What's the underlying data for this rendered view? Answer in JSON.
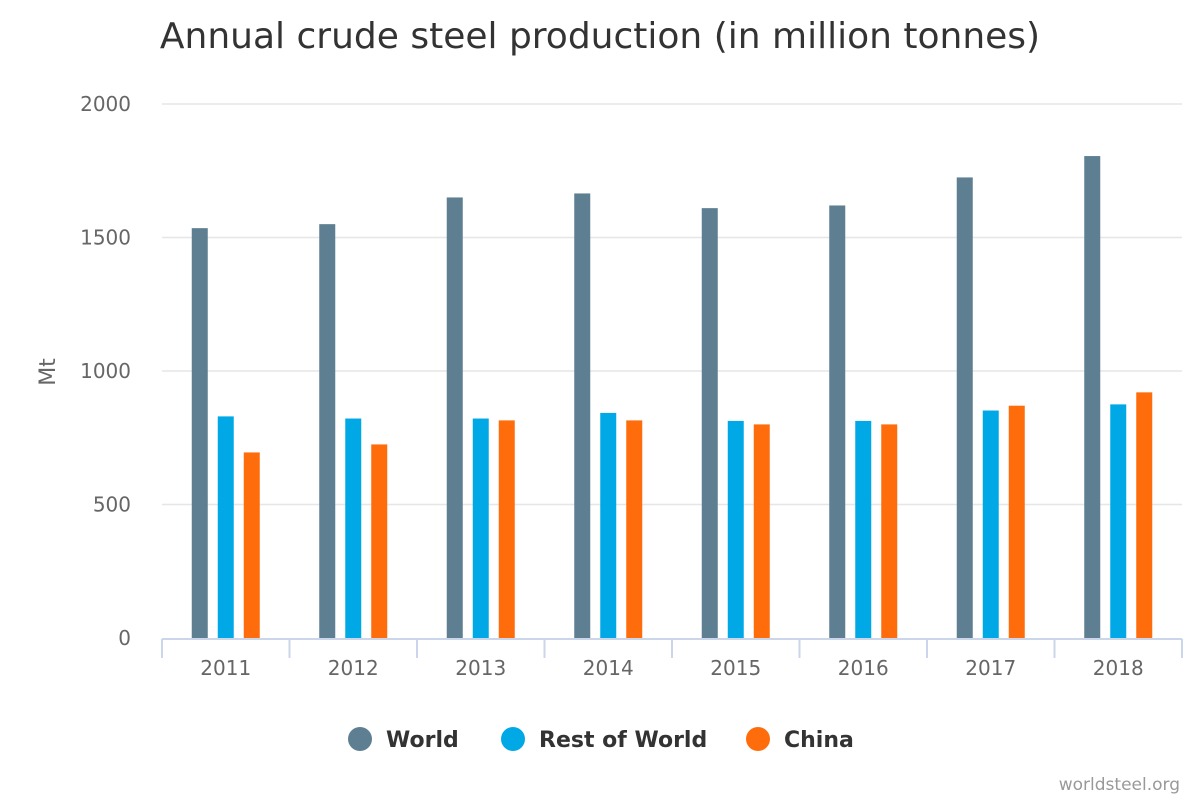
{
  "chart_data": {
    "type": "bar",
    "title": "Annual crude steel production (in million tonnes)",
    "xlabel": "",
    "ylabel": "Mt",
    "ylim": [
      0,
      2000
    ],
    "yticks": [
      "0",
      "500",
      "1000",
      "1500",
      "2000"
    ],
    "categories": [
      "2011",
      "2012",
      "2013",
      "2014",
      "2015",
      "2016",
      "2017",
      "2018"
    ],
    "series": [
      {
        "name": "World",
        "color": "#5d7f91",
        "values": [
          1535,
          1550,
          1650,
          1665,
          1610,
          1620,
          1725,
          1805
        ]
      },
      {
        "name": "Rest of World",
        "color": "#00a9e6",
        "values": [
          830,
          822,
          822,
          843,
          813,
          813,
          852,
          875
        ]
      },
      {
        "name": "China",
        "color": "#ff6c0c",
        "values": [
          695,
          725,
          815,
          815,
          800,
          800,
          870,
          920
        ]
      }
    ],
    "grid": true,
    "legend_position": "bottom-center",
    "credit": "worldsteel.org"
  }
}
